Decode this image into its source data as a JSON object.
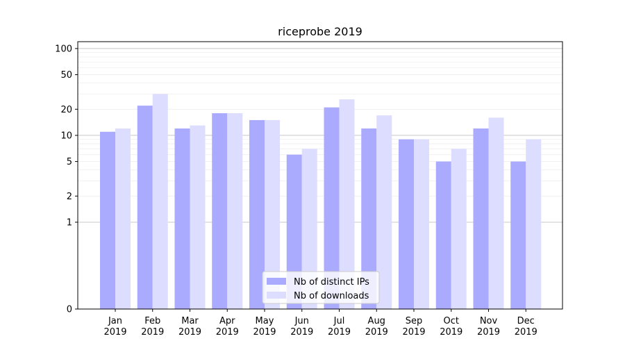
{
  "chart_data": {
    "type": "bar",
    "title": "riceprobe 2019",
    "xlabel": "",
    "ylabel": "",
    "yscale": "symlog",
    "ylim": [
      0,
      120
    ],
    "yticks": [
      0,
      1,
      2,
      5,
      10,
      20,
      50,
      100
    ],
    "grid": "horizontal",
    "legend_position": "bottom-center",
    "categories": [
      [
        "Jan",
        "2019"
      ],
      [
        "Feb",
        "2019"
      ],
      [
        "Mar",
        "2019"
      ],
      [
        "Apr",
        "2019"
      ],
      [
        "May",
        "2019"
      ],
      [
        "Jun",
        "2019"
      ],
      [
        "Jul",
        "2019"
      ],
      [
        "Aug",
        "2019"
      ],
      [
        "Sep",
        "2019"
      ],
      [
        "Oct",
        "2019"
      ],
      [
        "Nov",
        "2019"
      ],
      [
        "Dec",
        "2019"
      ]
    ],
    "series": [
      {
        "name": "Nb of distinct IPs",
        "color": "#aaaaff",
        "values": [
          11,
          22,
          12,
          18,
          15,
          6,
          21,
          12,
          9,
          5,
          12,
          5
        ]
      },
      {
        "name": "Nb of downloads",
        "color": "#ddddff",
        "values": [
          12,
          30,
          13,
          18,
          15,
          7,
          26,
          17,
          9,
          7,
          16,
          9
        ]
      }
    ]
  }
}
